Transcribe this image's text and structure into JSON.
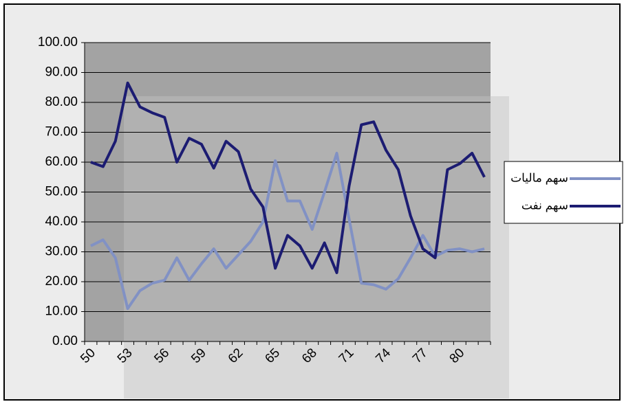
{
  "chart_data": {
    "type": "line",
    "categories": [
      50,
      null,
      null,
      53,
      null,
      null,
      56,
      null,
      null,
      59,
      null,
      null,
      62,
      null,
      null,
      65,
      null,
      null,
      68,
      null,
      null,
      71,
      null,
      null,
      74,
      null,
      null,
      77,
      null,
      null,
      80,
      null,
      null
    ],
    "series": [
      {
        "name": "سهم ماليات",
        "color": "#8191c4",
        "values": [
          32,
          34,
          28,
          11,
          17,
          19.5,
          20.5,
          28,
          20.5,
          26,
          31,
          24.5,
          29,
          33.5,
          40,
          60.5,
          47,
          47,
          37.5,
          50,
          63,
          41,
          19.5,
          19,
          17.5,
          21,
          28,
          35.5,
          28.5,
          30.5,
          31,
          30,
          31
        ]
      },
      {
        "name": "سهم نفت",
        "color": "#1c1c72",
        "values": [
          60,
          58.5,
          67,
          86.5,
          78.5,
          76.5,
          75,
          60,
          68,
          66,
          58,
          67,
          63.5,
          51,
          45,
          24.5,
          35.5,
          32,
          24.5,
          33,
          23,
          52,
          72.5,
          73.5,
          64,
          57.5,
          42,
          31,
          28,
          57.5,
          59.5,
          63,
          55
        ]
      }
    ],
    "ylim": [
      0,
      100
    ],
    "yticks": [
      {
        "value": 0,
        "label": "0.00"
      },
      {
        "value": 10,
        "label": "10.00"
      },
      {
        "value": 20,
        "label": "20.00"
      },
      {
        "value": 30,
        "label": "30.00"
      },
      {
        "value": 40,
        "label": "40.00"
      },
      {
        "value": 50,
        "label": "50.00"
      },
      {
        "value": 60,
        "label": "60.00"
      },
      {
        "value": 70,
        "label": "70.00"
      },
      {
        "value": 80,
        "label": "80.00"
      },
      {
        "value": 90,
        "label": "90.00"
      },
      {
        "value": 100,
        "label": "100.00"
      }
    ],
    "grid": true
  }
}
